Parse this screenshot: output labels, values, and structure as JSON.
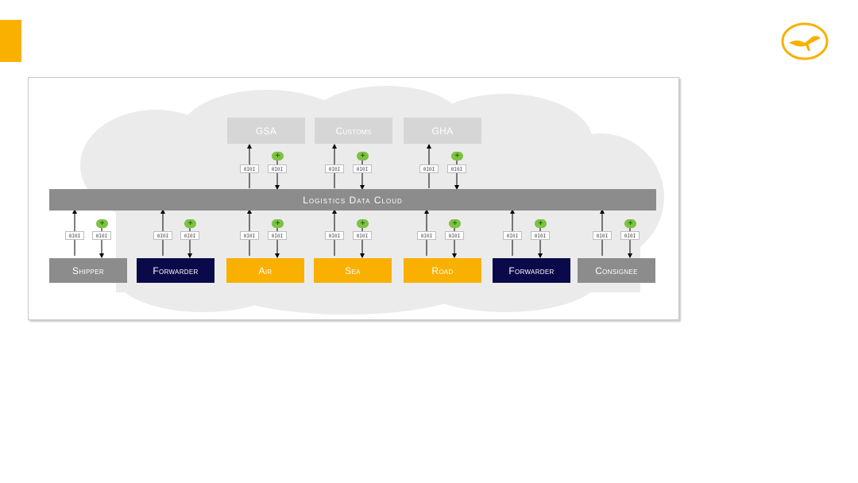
{
  "colors": {
    "accent": "#f9b000",
    "navy": "#0a0a4a",
    "grey": "#8c8c8c",
    "light_grey": "#d6d6d6",
    "green": "#7dc242",
    "cloud": "#ebebeb"
  },
  "logo": {
    "icon": "crane-logo-icon"
  },
  "diagram": {
    "cloud_label": "Logistics Data Cloud",
    "code_label": "0I0I",
    "plus_label": "+",
    "top_boxes": [
      {
        "label": "GSA"
      },
      {
        "label": "Customs"
      },
      {
        "label": "GHA"
      }
    ],
    "bottom_boxes": [
      {
        "label": "Shipper",
        "color": "grey"
      },
      {
        "label": "Forwarder",
        "color": "navy"
      },
      {
        "label": "Air",
        "color": "orange"
      },
      {
        "label": "Sea",
        "color": "orange"
      },
      {
        "label": "Road",
        "color": "orange"
      },
      {
        "label": "Forwarder",
        "color": "navy"
      },
      {
        "label": "Consignee",
        "color": "grey"
      }
    ]
  }
}
